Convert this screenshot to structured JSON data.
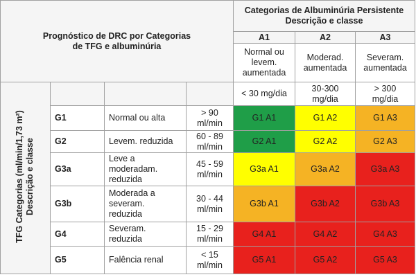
{
  "left_title": [
    "Prognóstico de DRC por Categorias",
    "de TFG e albuminúria"
  ],
  "albuminuria_title": [
    "Categorias de Albuminúria Persistente",
    "Descrição e classe"
  ],
  "side_label": [
    "TFG Categorias (ml/min/1,73 m²)",
    "Descrição e classe"
  ],
  "columns": [
    {
      "code": "A1",
      "description": [
        "Normal ou",
        "levem.",
        "aumentada"
      ],
      "range": [
        "< 30 mg/dia"
      ]
    },
    {
      "code": "A2",
      "description": [
        "Moderad.",
        "aumentada"
      ],
      "range": [
        "30-300",
        "mg/dia"
      ]
    },
    {
      "code": "A3",
      "description": [
        "Severam.",
        "aumentada"
      ],
      "range": [
        "> 300",
        "mg/dia"
      ]
    }
  ],
  "rows": [
    {
      "code": "G1",
      "description": [
        "Normal ou alta"
      ],
      "range": [
        "> 90",
        "ml/min"
      ],
      "cells": [
        {
          "label": "G1 A1",
          "color": "#1f9e48"
        },
        {
          "label": "G1 A2",
          "color": "#ffff00"
        },
        {
          "label": "G1 A3",
          "color": "#f5b324"
        }
      ]
    },
    {
      "code": "G2",
      "description": [
        "Levem. reduzida"
      ],
      "range": [
        "60 - 89",
        "ml/min"
      ],
      "cells": [
        {
          "label": "G2 A1",
          "color": "#1f9e48"
        },
        {
          "label": "G2 A2",
          "color": "#ffff00"
        },
        {
          "label": "G2 A3",
          "color": "#f5b324"
        }
      ]
    },
    {
      "code": "G3a",
      "description": [
        "Leve a",
        "moderadam.",
        "reduzida"
      ],
      "range": [
        "45 - 59",
        "ml/min"
      ],
      "cells": [
        {
          "label": "G3a A1",
          "color": "#ffff00"
        },
        {
          "label": "G3a A2",
          "color": "#f5b324"
        },
        {
          "label": "G3a A3",
          "color": "#e8211d"
        }
      ]
    },
    {
      "code": "G3b",
      "description": [
        "Moderada a",
        "severam.",
        "reduzida"
      ],
      "range": [
        "30 - 44",
        "ml/min"
      ],
      "cells": [
        {
          "label": "G3b A1",
          "color": "#f5b324"
        },
        {
          "label": "G3b A2",
          "color": "#e8211d"
        },
        {
          "label": "G3b A3",
          "color": "#e8211d"
        }
      ]
    },
    {
      "code": "G4",
      "description": [
        "Severam.",
        "reduzida"
      ],
      "range": [
        "15 - 29",
        "ml/min"
      ],
      "cells": [
        {
          "label": "G4 A1",
          "color": "#e8211d"
        },
        {
          "label": "G4 A2",
          "color": "#e8211d"
        },
        {
          "label": "G4 A3",
          "color": "#e8211d"
        }
      ]
    },
    {
      "code": "G5",
      "description": [
        "Falência renal"
      ],
      "range": [
        "< 15",
        "ml/min"
      ],
      "cells": [
        {
          "label": "G5 A1",
          "color": "#e8211d"
        },
        {
          "label": "G5 A2",
          "color": "#e8211d"
        },
        {
          "label": "G5 A3",
          "color": "#e8211d"
        }
      ]
    }
  ]
}
